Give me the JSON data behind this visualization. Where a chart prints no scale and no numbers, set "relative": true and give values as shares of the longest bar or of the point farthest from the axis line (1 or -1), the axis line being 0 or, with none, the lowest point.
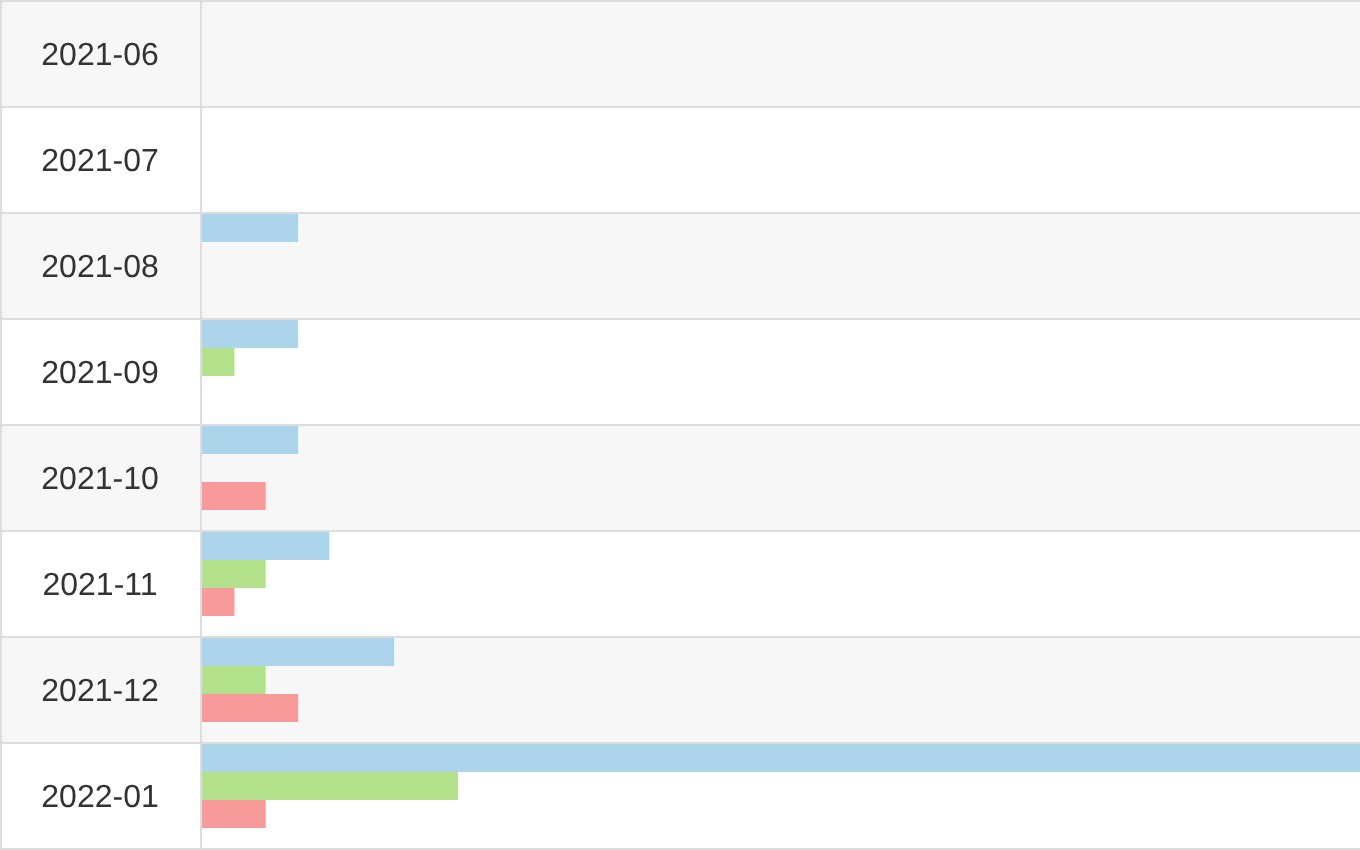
{
  "chart_data": {
    "type": "bar",
    "orientation": "horizontal",
    "relative": true,
    "categories": [
      "2021-06",
      "2021-07",
      "2021-08",
      "2021-09",
      "2021-10",
      "2021-11",
      "2021-12",
      "2022-01"
    ],
    "series": [
      {
        "color": "#acd5ec",
        "values": [
          0,
          0,
          0.083,
          0.083,
          0.083,
          0.11,
          0.166,
          1
        ]
      },
      {
        "color": "#b3e08a",
        "values": [
          0,
          0,
          0,
          0.028,
          0,
          0.055,
          0.055,
          0.221
        ]
      },
      {
        "color": "#f99a9a",
        "values": [
          0,
          0,
          0,
          0,
          0.055,
          0.028,
          0.083,
          0.055
        ]
      }
    ],
    "grid": "y"
  }
}
